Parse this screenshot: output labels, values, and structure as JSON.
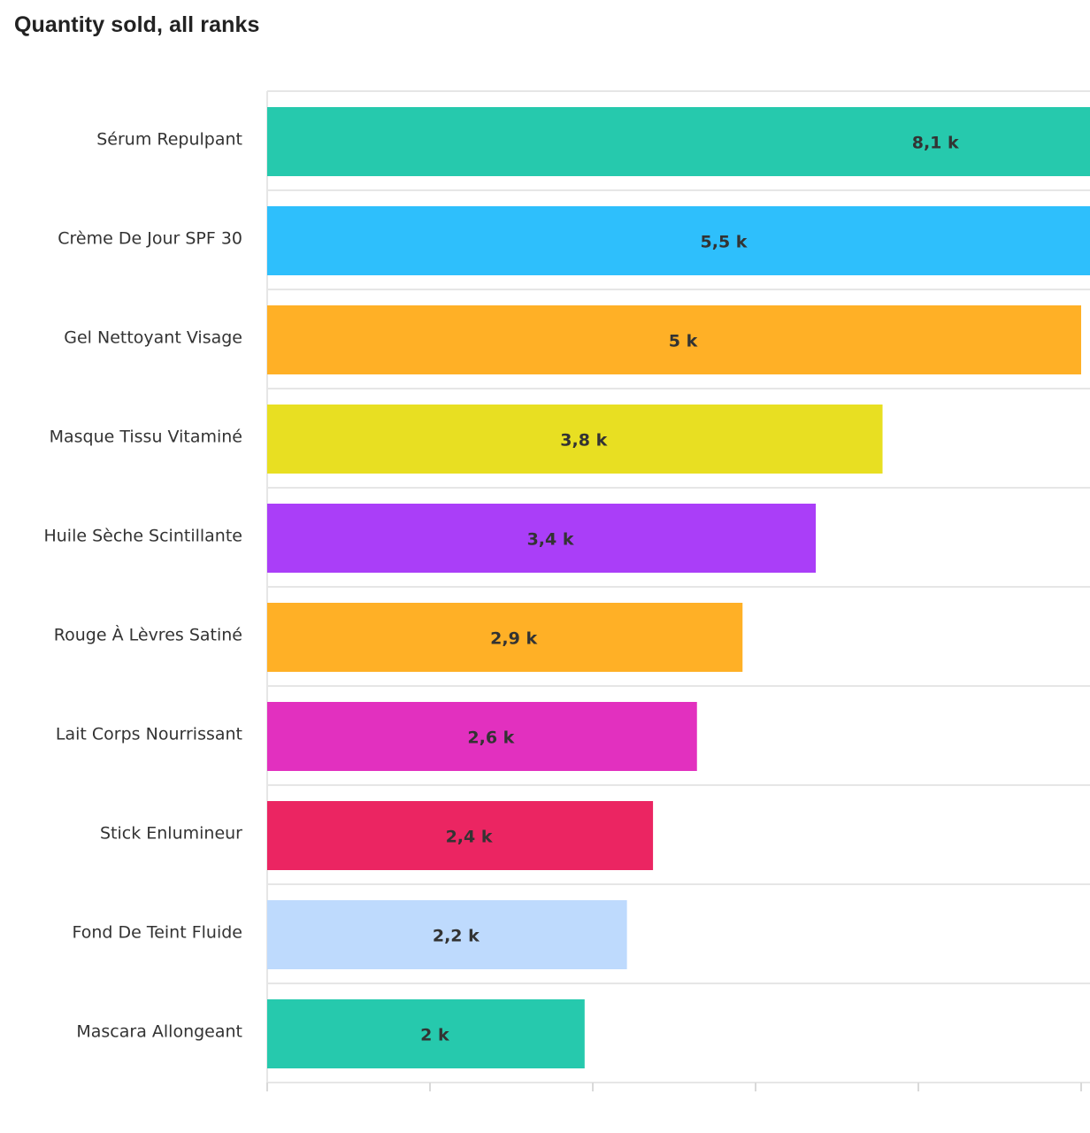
{
  "title": "Quantity sold, all ranks",
  "chart_data": {
    "type": "bar",
    "orientation": "horizontal",
    "title": "Quantity sold, all ranks",
    "xlabel": "",
    "ylabel": "",
    "grid": true,
    "xlim": [
      0,
      5000
    ],
    "categories": [
      "Sérum Repulpant",
      "Crème De Jour SPF 30",
      "Gel Nettoyant Visage",
      "Masque Tissu Vitaminé",
      "Huile Sèche Scintillante",
      "Rouge À Lèvres Satiné",
      "Lait Corps Nourrissant",
      "Stick Enlumineur",
      "Fond De Teint Fluide",
      "Mascara Allongeant"
    ],
    "values": [
      8100,
      5500,
      5000,
      3780,
      3370,
      2920,
      2640,
      2370,
      2210,
      1950
    ],
    "value_labels": [
      "8,1 k",
      "5,5 k",
      "5 k",
      "3,8 k",
      "3,4 k",
      "2,9 k",
      "2,6 k",
      "2,4 k",
      "2,2 k",
      "2 k"
    ],
    "colors": [
      "#26C9AD",
      "#2EBFFC",
      "#FFB026",
      "#E8DF22",
      "#AA3EF8",
      "#FFB026",
      "#E230BF",
      "#EB2562",
      "#BEDAFD",
      "#26C9AD"
    ]
  }
}
